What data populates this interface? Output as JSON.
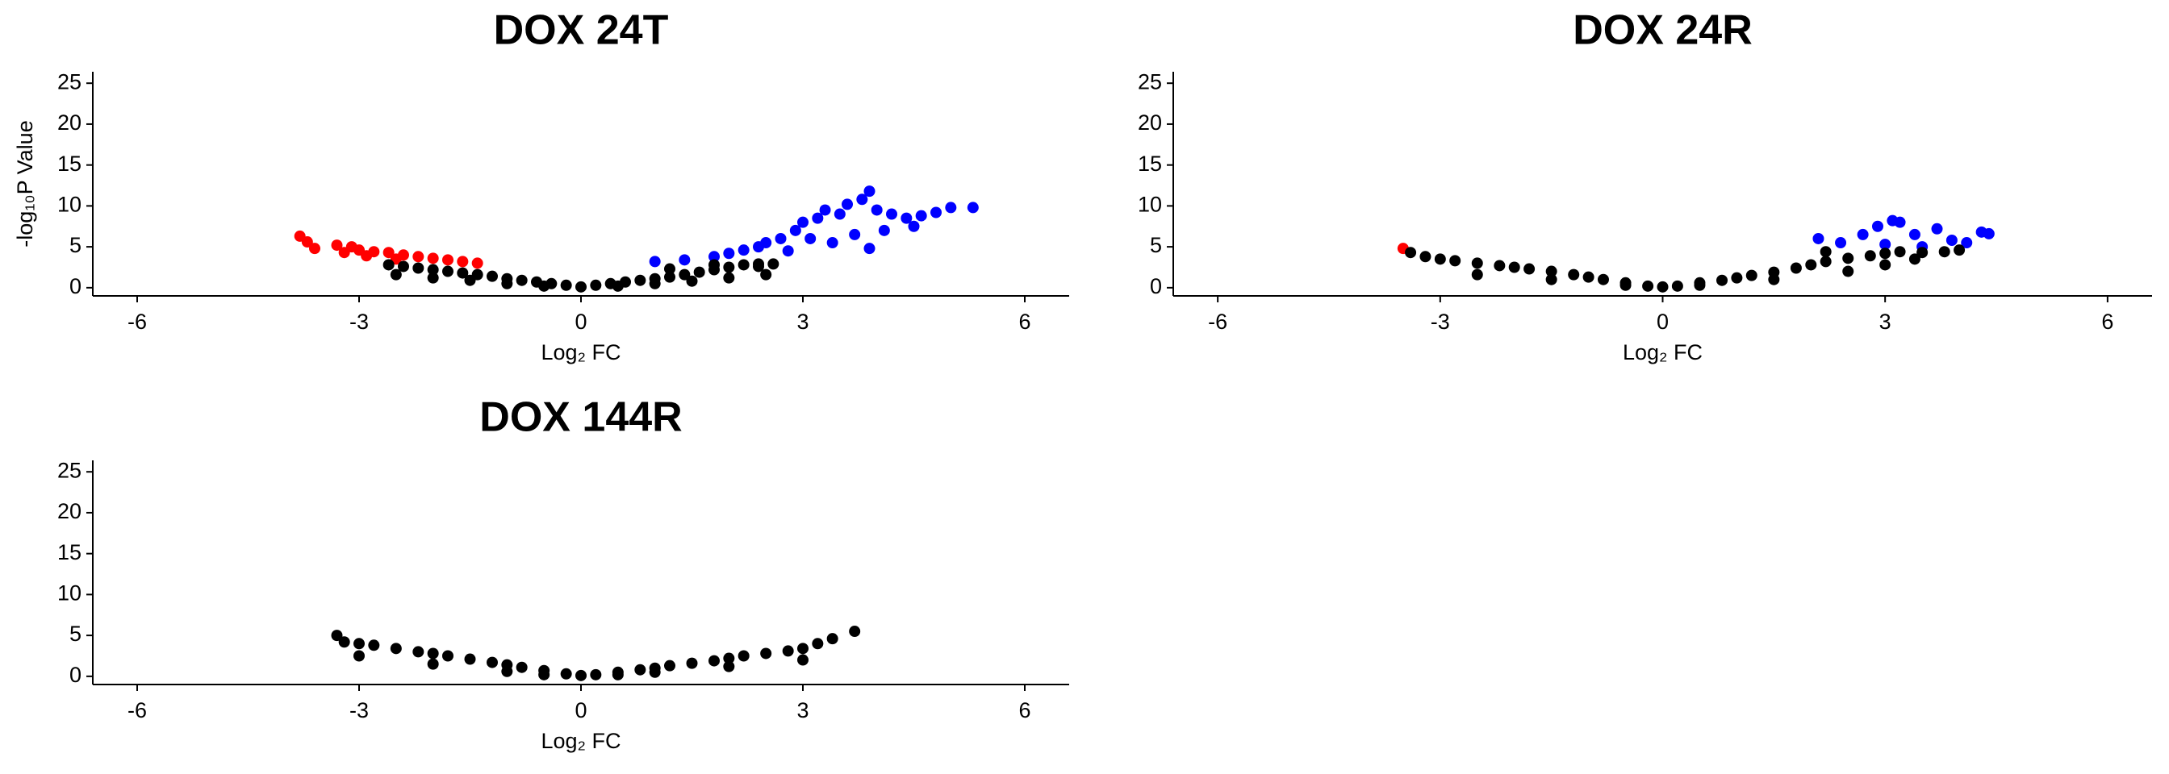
{
  "chart_data": [
    {
      "type": "scatter",
      "title": "DOX 24T",
      "xlabel": "Log₂ FC",
      "ylabel": "-log₁₀P Value",
      "xlim": [
        -6.6,
        6.6
      ],
      "ylim": [
        -1,
        26.4
      ],
      "xticks": [
        -6,
        -3,
        0,
        3,
        6
      ],
      "yticks": [
        0,
        5,
        10,
        15,
        20,
        25
      ],
      "series": [
        {
          "color": "#ff0000",
          "x": [
            -3.8,
            -3.7,
            -3.6,
            -3.3,
            -3.1,
            -3.0,
            -2.8,
            -2.6,
            -2.4,
            -2.2,
            -2.0,
            -1.8,
            -1.6,
            -1.4,
            -3.2,
            -2.9,
            -2.5
          ],
          "y": [
            6.3,
            5.6,
            4.8,
            5.2,
            5.0,
            4.6,
            4.4,
            4.3,
            4.0,
            3.8,
            3.6,
            3.4,
            3.2,
            3.0,
            4.3,
            3.9,
            3.5
          ]
        },
        {
          "color": "#0000ff",
          "x": [
            1.0,
            1.4,
            1.8,
            2.0,
            2.2,
            2.5,
            2.7,
            2.9,
            3.0,
            3.2,
            3.3,
            3.5,
            3.6,
            3.8,
            3.9,
            4.0,
            4.2,
            4.4,
            4.6,
            4.8,
            5.0,
            5.3,
            2.8,
            3.4,
            3.7,
            4.1,
            4.5,
            3.1,
            2.4,
            3.9
          ],
          "y": [
            3.2,
            3.4,
            3.8,
            4.2,
            4.6,
            5.5,
            6.0,
            7.0,
            8.0,
            8.5,
            9.5,
            9.0,
            10.2,
            10.8,
            11.8,
            9.5,
            9.0,
            8.5,
            8.8,
            9.2,
            9.8,
            9.8,
            4.5,
            5.5,
            6.5,
            7.0,
            7.5,
            6.0,
            5.0,
            4.8
          ]
        },
        {
          "color": "#000000",
          "x": [
            -2.6,
            -2.4,
            -2.2,
            -2.0,
            -1.8,
            -1.6,
            -1.4,
            -1.2,
            -1.0,
            -0.8,
            -0.6,
            -0.4,
            -0.2,
            0,
            0.2,
            0.4,
            0.6,
            0.8,
            1.0,
            1.2,
            1.4,
            1.6,
            1.8,
            2.0,
            2.2,
            2.4,
            2.6,
            -2.5,
            -2.0,
            -1.5,
            -1.0,
            -0.5,
            0.5,
            1.0,
            1.5,
            2.0,
            2.5,
            1.2,
            1.8,
            2.4
          ],
          "y": [
            2.8,
            2.6,
            2.4,
            2.2,
            2.0,
            1.8,
            1.6,
            1.4,
            1.1,
            0.9,
            0.7,
            0.5,
            0.3,
            0.1,
            0.3,
            0.5,
            0.7,
            0.9,
            1.1,
            1.3,
            1.6,
            1.9,
            2.2,
            2.5,
            2.8,
            2.9,
            2.9,
            1.6,
            1.2,
            0.9,
            0.5,
            0.2,
            0.2,
            0.5,
            0.8,
            1.2,
            1.6,
            2.3,
            2.8,
            2.6
          ]
        }
      ]
    },
    {
      "type": "scatter",
      "title": "DOX 24R",
      "xlabel": "Log₂ FC",
      "xlim": [
        -6.6,
        6.6
      ],
      "ylim": [
        -1,
        26.4
      ],
      "xticks": [
        -6,
        -3,
        0,
        3,
        6
      ],
      "yticks": [
        0,
        5,
        10,
        15,
        20,
        25
      ],
      "series": [
        {
          "color": "#ff0000",
          "x": [
            -3.5
          ],
          "y": [
            4.8
          ]
        },
        {
          "color": "#0000ff",
          "x": [
            2.1,
            2.4,
            2.7,
            2.9,
            3.1,
            3.2,
            3.4,
            3.7,
            3.9,
            4.1,
            4.3,
            4.4,
            3.5,
            3.0
          ],
          "y": [
            6.0,
            5.5,
            6.5,
            7.5,
            8.2,
            8.0,
            6.5,
            7.2,
            5.8,
            5.5,
            6.8,
            6.6,
            5.0,
            5.3
          ]
        },
        {
          "color": "#000000",
          "x": [
            -3.4,
            -3.2,
            -3.0,
            -2.8,
            -2.5,
            -2.2,
            -2.0,
            -1.8,
            -1.5,
            -1.2,
            -1.0,
            -0.8,
            -0.5,
            -0.2,
            0,
            0.2,
            0.5,
            0.8,
            1.0,
            1.2,
            1.5,
            1.8,
            2.0,
            2.2,
            2.5,
            2.8,
            3.0,
            3.2,
            3.5,
            3.8,
            4.0,
            -2.5,
            -1.5,
            -0.5,
            0.5,
            1.5,
            2.5,
            3.0,
            2.2,
            3.4
          ],
          "y": [
            4.3,
            3.8,
            3.5,
            3.3,
            3.0,
            2.7,
            2.5,
            2.3,
            2.0,
            1.6,
            1.3,
            1.0,
            0.6,
            0.2,
            0.1,
            0.2,
            0.6,
            0.9,
            1.2,
            1.5,
            1.9,
            2.4,
            2.8,
            3.2,
            3.6,
            3.9,
            4.2,
            4.4,
            4.3,
            4.4,
            4.6,
            1.6,
            1.0,
            0.3,
            0.3,
            1.0,
            2.0,
            2.8,
            4.4,
            3.5
          ]
        }
      ]
    },
    {
      "type": "scatter",
      "title": "DOX 144R",
      "xlabel": "Log₂ FC",
      "xlim": [
        -6.6,
        6.6
      ],
      "ylim": [
        -1,
        26.4
      ],
      "xticks": [
        -6,
        -3,
        0,
        3,
        6
      ],
      "yticks": [
        0,
        5,
        10,
        15,
        20,
        25
      ],
      "series": [
        {
          "color": "#000000",
          "x": [
            -3.3,
            -3.2,
            -3.0,
            -2.8,
            -2.5,
            -2.2,
            -2.0,
            -1.8,
            -1.5,
            -1.2,
            -1.0,
            -0.8,
            -0.5,
            -0.2,
            0,
            0.2,
            0.5,
            0.8,
            1.0,
            1.2,
            1.5,
            1.8,
            2.0,
            2.2,
            2.5,
            2.8,
            3.0,
            3.2,
            3.4,
            3.7,
            -3.0,
            -2.0,
            -1.0,
            -0.5,
            0.5,
            1.0,
            2.0,
            3.0
          ],
          "y": [
            5.0,
            4.2,
            4.0,
            3.8,
            3.4,
            3.0,
            2.8,
            2.5,
            2.1,
            1.7,
            1.4,
            1.1,
            0.7,
            0.3,
            0.1,
            0.2,
            0.5,
            0.8,
            1.0,
            1.3,
            1.6,
            1.9,
            2.2,
            2.5,
            2.8,
            3.1,
            3.4,
            4.0,
            4.6,
            5.5,
            2.5,
            1.5,
            0.6,
            0.2,
            0.2,
            0.5,
            1.2,
            2.0
          ]
        }
      ]
    }
  ]
}
